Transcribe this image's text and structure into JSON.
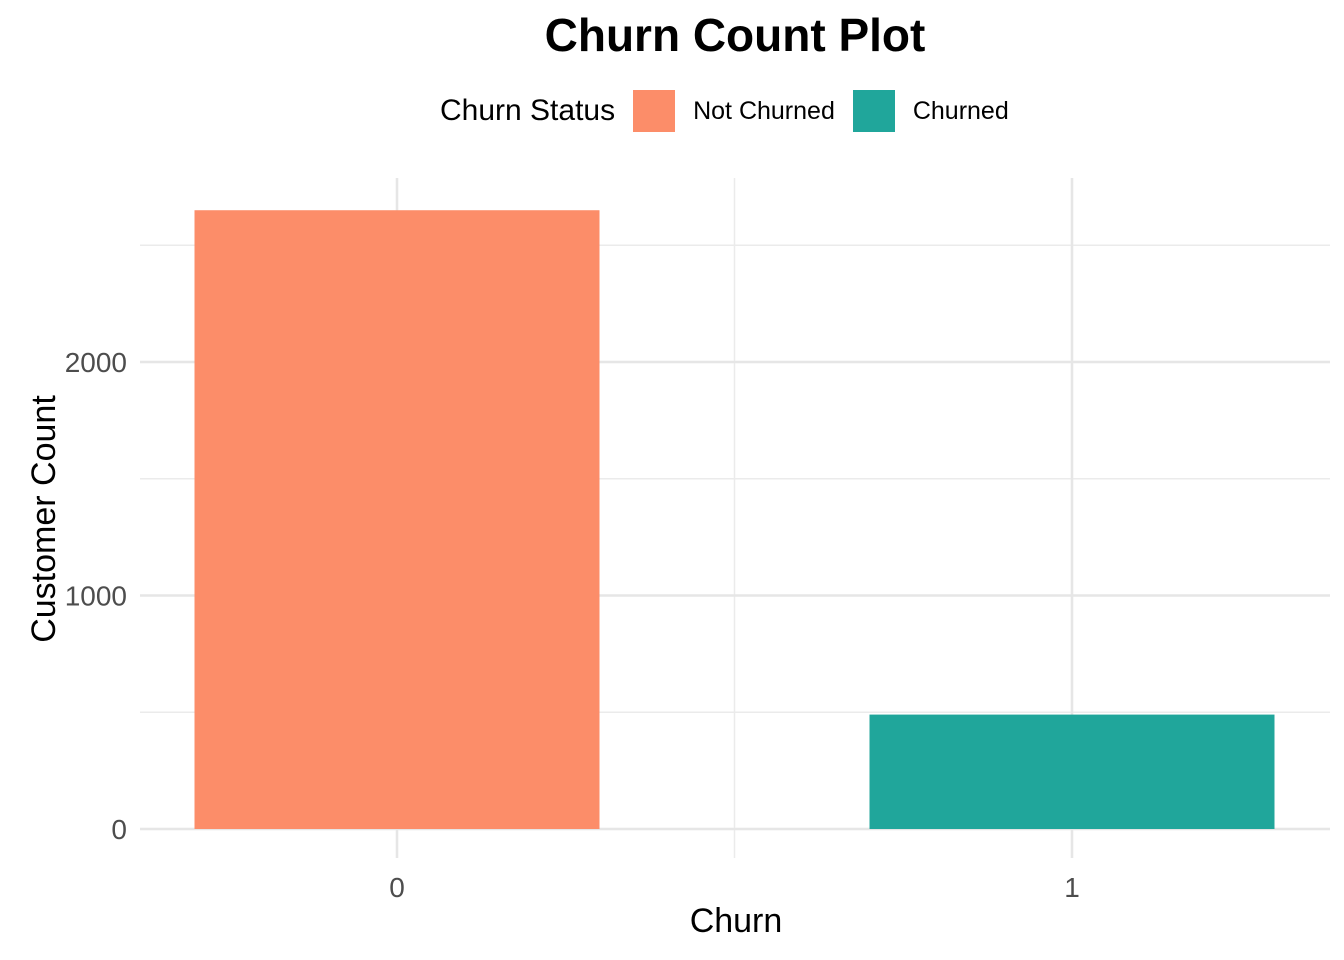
{
  "chart_data": {
    "type": "bar",
    "title": "Churn Count Plot",
    "xlabel": "Churn",
    "ylabel": "Customer Count",
    "categories": [
      "0",
      "1"
    ],
    "values": [
      2650,
      490
    ],
    "bar_labels": [
      "Not Churned",
      "Churned"
    ],
    "bar_colors": [
      "#FC8D69",
      "#20A69B"
    ],
    "ylim": [
      0,
      2790
    ],
    "yticks": [
      0,
      1000,
      2000
    ],
    "yticks_minor": [
      500,
      1500,
      2500
    ],
    "grid": true,
    "legend": {
      "title": "Churn Status",
      "position": "top",
      "entries": [
        {
          "label": "Not Churned",
          "color": "#FC8D69"
        },
        {
          "label": "Churned",
          "color": "#20A69B"
        }
      ]
    }
  }
}
